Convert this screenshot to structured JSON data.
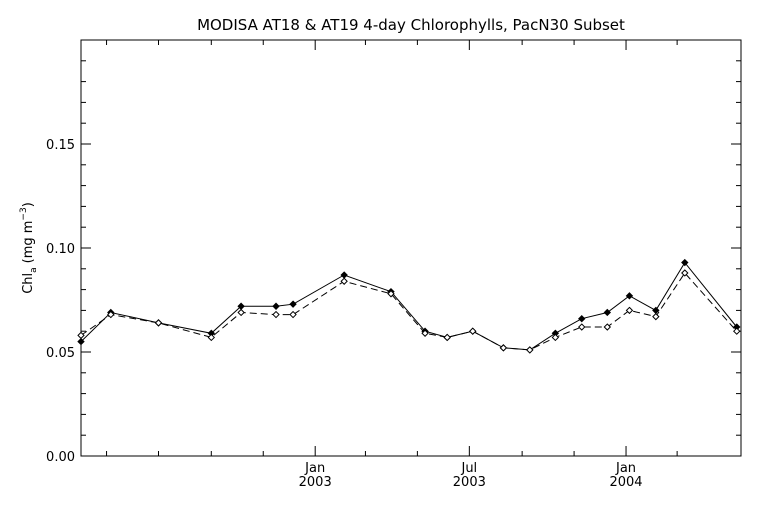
{
  "chart_data": {
    "type": "line",
    "title": "MODISA AT18 & AT19 4-day Chlorophylls, PacN30 Subset",
    "ylabel": {
      "main": "Chl",
      "sub": "a",
      "units_open": "(mg m",
      "units_sup": "−3",
      "units_close": ")"
    },
    "xlabel": "",
    "ylim": [
      0.0,
      0.2
    ],
    "y_ticks": [
      "0.00",
      "0.05",
      "0.10",
      "0.15"
    ],
    "y_tick_values": [
      0.0,
      0.05,
      0.1,
      0.15
    ],
    "x_range": [
      "2002-04-01",
      "2004-05-15"
    ],
    "x_major_ticks": [
      {
        "date": "2003-01-01",
        "month": "Jan",
        "year": "2003"
      },
      {
        "date": "2003-07-01",
        "month": "Jul",
        "year": "2003"
      },
      {
        "date": "2004-01-01",
        "month": "Jan",
        "year": "2004"
      }
    ],
    "x_minor_ticks": [
      "2002-05-01",
      "2002-07-01",
      "2002-09-01",
      "2002-11-01",
      "2003-03-01",
      "2003-05-01",
      "2003-09-01",
      "2003-11-01",
      "2004-03-01"
    ],
    "grid": false,
    "series": [
      {
        "line": "solid",
        "marker": "filled-diamond",
        "points": [
          [
            "2002-04-01",
            0.055
          ],
          [
            "2002-05-06",
            0.069
          ],
          [
            "2002-07-01",
            0.064
          ],
          [
            "2002-09-01",
            0.059
          ],
          [
            "2002-10-06",
            0.072
          ],
          [
            "2002-11-16",
            0.072
          ],
          [
            "2002-12-06",
            0.073
          ],
          [
            "2003-02-04",
            0.087
          ],
          [
            "2003-03-31",
            0.079
          ],
          [
            "2003-05-10",
            0.06
          ],
          [
            "2003-06-05",
            0.057
          ],
          [
            "2003-07-05",
            0.06
          ],
          [
            "2003-08-10",
            0.052
          ],
          [
            "2003-09-10",
            0.051
          ],
          [
            "2003-10-10",
            0.059
          ],
          [
            "2003-11-10",
            0.066
          ],
          [
            "2003-12-10",
            0.069
          ],
          [
            "2004-01-05",
            0.077
          ],
          [
            "2004-02-05",
            0.07
          ],
          [
            "2004-03-10",
            0.093
          ],
          [
            "2004-05-10",
            0.062
          ]
        ]
      },
      {
        "line": "dashed",
        "marker": "open-diamond",
        "points": [
          [
            "2002-04-01",
            0.058
          ],
          [
            "2002-05-06",
            0.068
          ],
          [
            "2002-07-01",
            0.064
          ],
          [
            "2002-09-01",
            0.057
          ],
          [
            "2002-10-06",
            0.069
          ],
          [
            "2002-11-16",
            0.068
          ],
          [
            "2002-12-06",
            0.068
          ],
          [
            "2003-02-04",
            0.084
          ],
          [
            "2003-03-31",
            0.078
          ],
          [
            "2003-05-10",
            0.059
          ],
          [
            "2003-06-05",
            0.057
          ],
          [
            "2003-07-05",
            0.06
          ],
          [
            "2003-08-10",
            0.052
          ],
          [
            "2003-09-10",
            0.051
          ],
          [
            "2003-10-10",
            0.057
          ],
          [
            "2003-11-10",
            0.062
          ],
          [
            "2003-12-10",
            0.062
          ],
          [
            "2004-01-05",
            0.07
          ],
          [
            "2004-02-05",
            0.067
          ],
          [
            "2004-03-10",
            0.088
          ],
          [
            "2004-05-10",
            0.06
          ]
        ]
      }
    ],
    "colors": {
      "line": "#000000",
      "background": "#ffffff"
    }
  }
}
